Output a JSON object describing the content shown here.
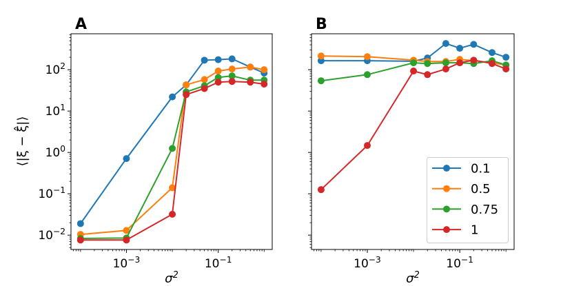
{
  "chart_data": {
    "type": "line",
    "xscale": "log",
    "yscale": "log",
    "xlabel": "σ^2",
    "ylabel": "⟨|ξ − ξ̂|⟩",
    "xlim": [
      6.2e-05,
      1.5
    ],
    "ylim": [
      0.0045,
      740
    ],
    "grid": false,
    "x_ticks": [
      {
        "value": 0.001,
        "label": "10^-3"
      },
      {
        "value": 0.1,
        "label": "10^-1"
      }
    ],
    "y_ticks": [
      {
        "value": 0.01,
        "label": "10^-2"
      },
      {
        "value": 0.1,
        "label": "10^-1"
      },
      {
        "value": 1,
        "label": "10^0"
      },
      {
        "value": 10,
        "label": "10^1"
      },
      {
        "value": 100,
        "label": "10^2"
      }
    ],
    "colors": {
      "0.1": "#1f77b4",
      "0.5": "#ff7f0e",
      "0.75": "#2ca02c",
      "1": "#d62728"
    },
    "x": [
      0.0001,
      0.001,
      0.01,
      0.02,
      0.05,
      0.1,
      0.2,
      0.5,
      1
    ],
    "legend": {
      "placement": "lower right",
      "panel": "B"
    },
    "panels": [
      {
        "label": "A",
        "series": [
          {
            "name": "0.1",
            "values": [
              0.019,
              0.71,
              22,
              43,
              170,
              175,
              183,
              116,
              83
            ]
          },
          {
            "name": "0.5",
            "values": [
              0.0104,
              0.013,
              0.14,
              43,
              58,
              93,
              104,
              116,
              100
            ]
          },
          {
            "name": "0.75",
            "values": [
              0.0083,
              0.0085,
              1.25,
              29,
              41,
              65,
              71,
              56,
              56
            ]
          },
          {
            "name": "1",
            "values": [
              0.0076,
              0.0076,
              0.032,
              25,
              35,
              50,
              52,
              50,
              45
            ]
          }
        ]
      },
      {
        "label": "B",
        "series": [
          {
            "name": "0.1",
            "values": [
              165,
              165,
              160,
              192,
              430,
              330,
              410,
              260,
              200
            ]
          },
          {
            "name": "0.5",
            "values": [
              215,
              207,
              170,
              158,
              158,
              178,
              165,
              147,
              130
            ]
          },
          {
            "name": "0.75",
            "values": [
              54,
              76,
              147,
              141,
              147,
              147,
              141,
              165,
              130
            ]
          },
          {
            "name": "1",
            "values": [
              0.126,
              1.47,
              93,
              76,
              104,
              147,
              170,
              141,
              104
            ]
          }
        ]
      }
    ]
  }
}
